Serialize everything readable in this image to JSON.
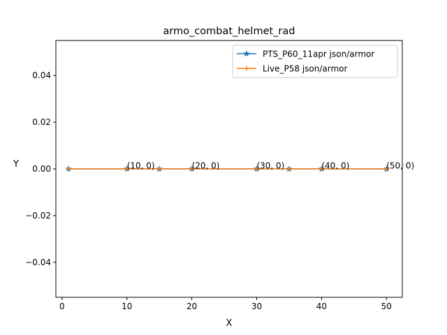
{
  "chart_data": {
    "type": "line",
    "title": "armo_combat_helmet_rad",
    "xlabel": "X",
    "ylabel": "Y",
    "xlim": [
      -0.95,
      52.45
    ],
    "ylim": [
      -0.055,
      0.055
    ],
    "x_ticks": [
      0,
      10,
      20,
      30,
      40,
      50
    ],
    "x_tick_labels": [
      "0",
      "10",
      "20",
      "30",
      "40",
      "50"
    ],
    "y_ticks": [
      -0.04,
      -0.02,
      0.0,
      0.02,
      0.04
    ],
    "y_tick_labels": [
      "−0.04",
      "−0.02",
      "0.00",
      "0.02",
      "0.04"
    ],
    "grid": false,
    "legend_position": "upper right",
    "series": [
      {
        "name": "PTS_P60_11apr json/armor",
        "color": "#1f77b4",
        "marker": "star",
        "x": [
          1,
          10,
          15,
          20,
          30,
          35,
          40,
          50
        ],
        "y": [
          0,
          0,
          0,
          0,
          0,
          0,
          0,
          0
        ]
      },
      {
        "name": "Live_P58 json/armor",
        "color": "#ff7f0e",
        "marker": "plus",
        "x": [
          1,
          10,
          15,
          20,
          30,
          35,
          40,
          50
        ],
        "y": [
          0,
          0,
          0,
          0,
          0,
          0,
          0,
          0
        ]
      }
    ],
    "annotations": [
      {
        "text": "(10, 0)",
        "x": 10,
        "y": 0
      },
      {
        "text": "(20, 0)",
        "x": 20,
        "y": 0
      },
      {
        "text": "(30, 0)",
        "x": 30,
        "y": 0
      },
      {
        "text": "(40, 0)",
        "x": 40,
        "y": 0
      },
      {
        "text": "(50, 0)",
        "x": 50,
        "y": 0
      }
    ]
  }
}
